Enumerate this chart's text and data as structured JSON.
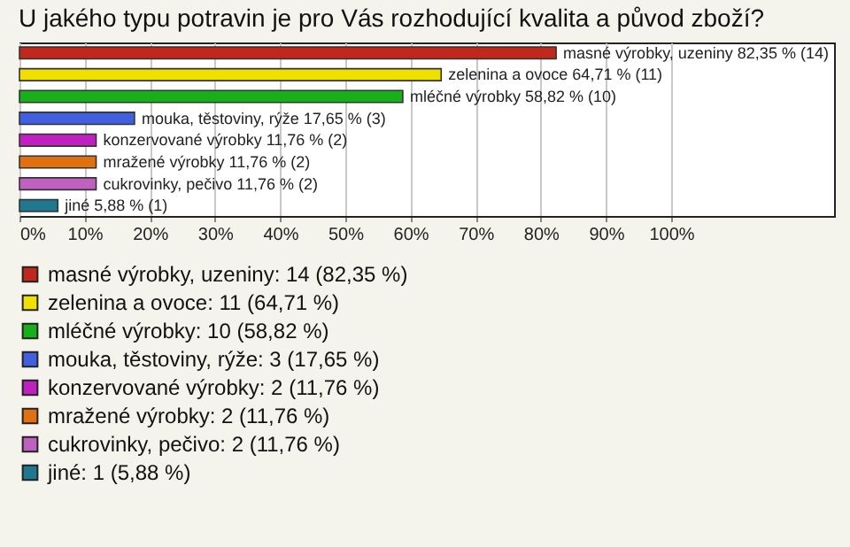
{
  "chart_data": {
    "type": "bar",
    "orientation": "horizontal",
    "title": "U jakého typu potravin je pro Vás rozhodující kvalita a původ zboží?",
    "categories": [
      null,
      null,
      null,
      null,
      null,
      null,
      null,
      null
    ],
    "series": [
      {
        "name": "masné výrobky, uzeniny: 14 (82,35 %)",
        "color": "#c0281c",
        "values": [
          82.35,
          null,
          null,
          null,
          null,
          null,
          null,
          null
        ],
        "value_labels": [
          "masné výrobky, uzeniny 82,35 % (14)",
          null,
          null,
          null,
          null,
          null,
          null,
          null
        ]
      },
      {
        "name": "zelenina a ovoce: 11 (64,71 %)",
        "color": "#f0e000",
        "values": [
          null,
          64.71,
          null,
          null,
          null,
          null,
          null,
          null
        ],
        "value_labels": [
          null,
          "zelenina a ovoce 64,71 % (11)",
          null,
          null,
          null,
          null,
          null,
          null
        ]
      },
      {
        "name": "mléčné výrobky: 10 (58,82 %)",
        "color": "#18b018",
        "values": [
          null,
          null,
          58.82,
          null,
          null,
          null,
          null,
          null
        ],
        "value_labels": [
          null,
          null,
          "mléčné výrobky 58,82 % (10)",
          null,
          null,
          null,
          null,
          null
        ]
      },
      {
        "name": "mouka, těstoviny, rýže: 3 (17,65 %)",
        "color": "#4060e0",
        "values": [
          null,
          null,
          null,
          17.65,
          null,
          null,
          null,
          null
        ],
        "value_labels": [
          null,
          null,
          null,
          "mouka, těstoviny, rýže 17,65 % (3)",
          null,
          null,
          null,
          null
        ]
      },
      {
        "name": "konzervované výrobky: 2 (11,76 %)",
        "color": "#c020c0",
        "values": [
          null,
          null,
          null,
          null,
          11.76,
          null,
          null,
          null
        ],
        "value_labels": [
          null,
          null,
          null,
          null,
          "konzervované výrobky 11,76 % (2)",
          null,
          null,
          null
        ]
      },
      {
        "name": "mražené výrobky: 2 (11,76 %)",
        "color": "#e07010",
        "values": [
          null,
          null,
          null,
          null,
          null,
          11.76,
          null,
          null
        ],
        "value_labels": [
          null,
          null,
          null,
          null,
          null,
          "mražené výrobky 11,76 % (2)",
          null,
          null
        ]
      },
      {
        "name": "cukrovinky, pečivo: 2 (11,76 %)",
        "color": "#c060c0",
        "values": [
          null,
          null,
          null,
          null,
          null,
          null,
          11.76,
          null
        ],
        "value_labels": [
          null,
          null,
          null,
          null,
          null,
          null,
          "cukrovinky, pečivo 11,76 % (2)",
          null
        ]
      },
      {
        "name": "jiné: 1 (5,88 %)",
        "color": "#207890",
        "values": [
          null,
          null,
          null,
          null,
          null,
          null,
          null,
          5.88
        ],
        "value_labels": [
          null,
          null,
          null,
          null,
          null,
          null,
          null,
          "jiné 5,88 % (1)"
        ]
      }
    ],
    "xlim": [
      0,
      125
    ],
    "xticks": [
      {
        "value": 0,
        "label": "0%"
      },
      {
        "value": 10,
        "label": "10%"
      },
      {
        "value": 20,
        "label": "20%"
      },
      {
        "value": 30,
        "label": "30%"
      },
      {
        "value": 40,
        "label": "40%"
      },
      {
        "value": 50,
        "label": "50%"
      },
      {
        "value": 60,
        "label": "60%"
      },
      {
        "value": 70,
        "label": "70%"
      },
      {
        "value": 80,
        "label": "80%"
      },
      {
        "value": 90,
        "label": "90%"
      },
      {
        "value": 100,
        "label": "100%"
      }
    ],
    "grid": "x",
    "legend": "bottom",
    "tick_labels": "x"
  }
}
